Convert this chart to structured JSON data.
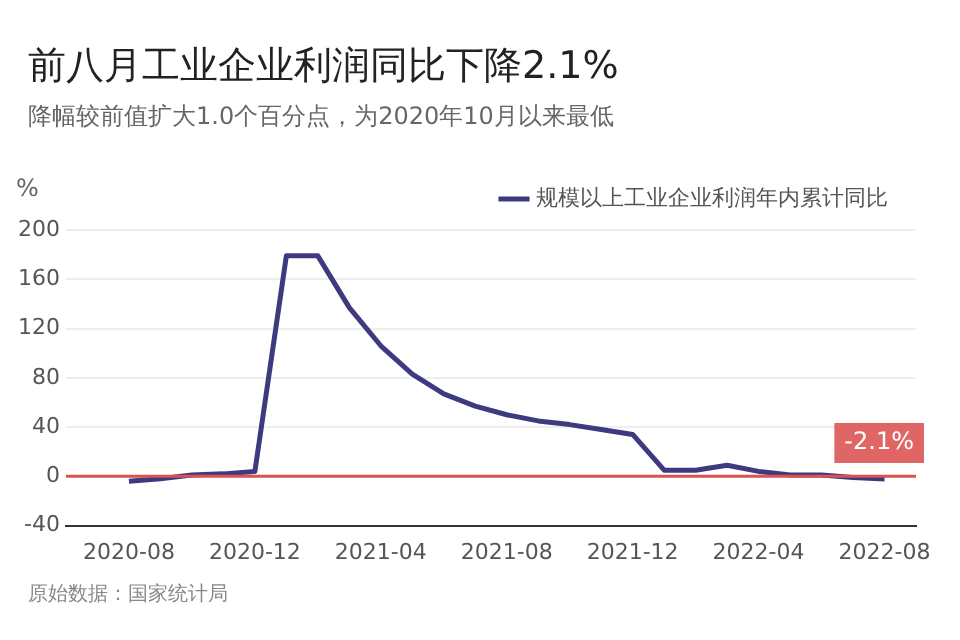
{
  "chart_data": {
    "type": "line",
    "title": "前八月工业企业利润同比下降2.1%",
    "subtitle": "降幅较前值扩大1.0个百分点，为2020年10月以来最低",
    "ylabel": "%",
    "x": [
      "2020-08",
      "2020-09",
      "2020-10",
      "2020-11",
      "2020-12",
      "2021-01",
      "2021-02",
      "2021-03",
      "2021-04",
      "2021-05",
      "2021-06",
      "2021-07",
      "2021-08",
      "2021-09",
      "2021-10",
      "2021-11",
      "2021-12",
      "2022-01",
      "2022-02",
      "2022-03",
      "2022-04",
      "2022-05",
      "2022-06",
      "2022-07",
      "2022-08"
    ],
    "series": [
      {
        "name": "规模以上工业企业利润年内累计同比",
        "color": "#3d3a80",
        "values": [
          -4,
          -2,
          1,
          2,
          4,
          179,
          179,
          137,
          106,
          83,
          67,
          57,
          50,
          45,
          42,
          38,
          34,
          5,
          5,
          9,
          4,
          1,
          1,
          -1,
          -2.1
        ]
      }
    ],
    "xlim": [
      "2020-06",
      "2022-09"
    ],
    "xticks": [
      "2020-08",
      "2020-12",
      "2021-04",
      "2021-08",
      "2021-12",
      "2022-04",
      "2022-08"
    ],
    "ylim": [
      -40,
      200
    ],
    "yticks": [
      -40,
      0,
      40,
      80,
      120,
      160,
      200
    ],
    "ref_lines": [
      {
        "axis": "y",
        "value": 0,
        "color": "#d9534f"
      }
    ],
    "annotations": [
      {
        "text": "-2.1%",
        "x": "2022-08",
        "y": -2.1
      },
      "原始数据：国家统计局"
    ],
    "grid": "y",
    "legend": "top right",
    "marker": "none",
    "line_style": "solid"
  }
}
